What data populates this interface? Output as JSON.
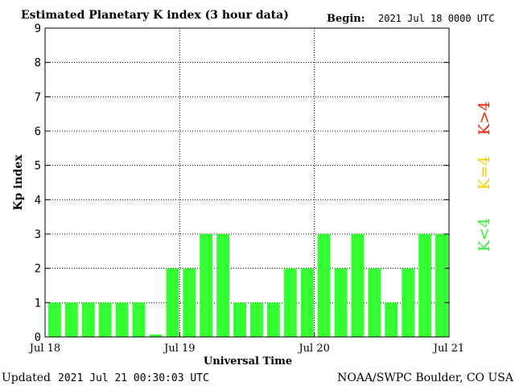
{
  "header": {
    "title": "Estimated Planetary K index (3 hour data)",
    "begin_label": "Begin:",
    "begin_value": "2021 Jul 18 0000 UTC"
  },
  "footer": {
    "updated_label": "Updated",
    "updated_value": "2021 Jul 21 00:30:03 UTC",
    "source": "NOAA/SWPC Boulder, CO USA"
  },
  "legend": {
    "items": [
      {
        "label": "K<4",
        "color": "#33ee33"
      },
      {
        "label": "K=4",
        "color": "#ffcc00"
      },
      {
        "label": "K>4",
        "color": "#ee2200"
      }
    ]
  },
  "colors": {
    "bar": "#33ff33",
    "axis": "#000000",
    "grid": "#000000",
    "background": "#ffffff"
  },
  "chart_data": {
    "type": "bar",
    "xlabel": "Universal Time",
    "ylabel": "Kp index",
    "ylim": [
      0,
      9
    ],
    "yticks": [
      0,
      1,
      2,
      3,
      4,
      5,
      6,
      7,
      8,
      9
    ],
    "xlim": [
      0,
      72
    ],
    "x_unit": "hours since 2021 Jul 18 0000 UTC",
    "xtick_labels": [
      {
        "label": "Jul 18",
        "hour": 0
      },
      {
        "label": "Jul 19",
        "hour": 24
      },
      {
        "label": "Jul 20",
        "hour": 48
      },
      {
        "label": "Jul 21",
        "hour": 72
      }
    ],
    "interval_hours": 3,
    "grid": true,
    "values": [
      1,
      1,
      1,
      1,
      1,
      1,
      0.07,
      2,
      2,
      3,
      3,
      1,
      1,
      1,
      2,
      2,
      3,
      2,
      3,
      2,
      1,
      2,
      3,
      3
    ]
  }
}
